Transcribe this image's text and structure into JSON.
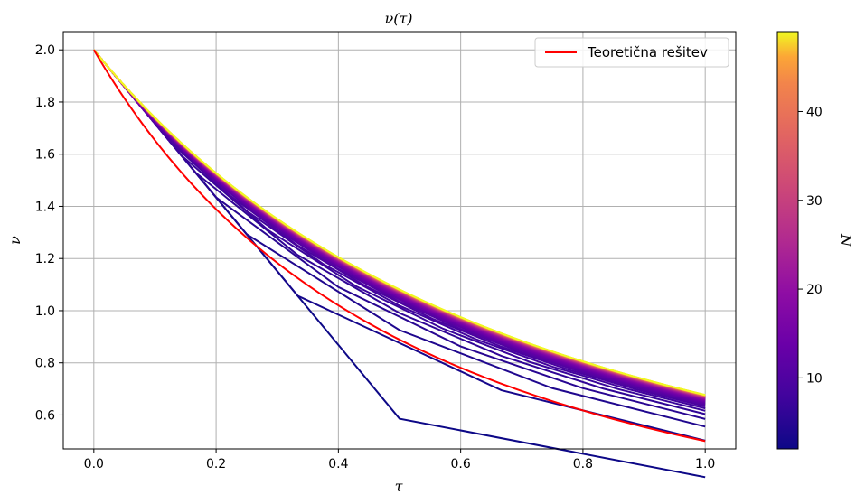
{
  "chart_data": {
    "type": "line",
    "title": "ν(τ)",
    "xlabel": "τ",
    "ylabel": "ν",
    "xlim": [
      -0.05,
      1.05
    ],
    "ylim": [
      0.47,
      2.07
    ],
    "xticks": [
      "0.0",
      "0.2",
      "0.4",
      "0.6",
      "0.8",
      "1.0"
    ],
    "yticks": [
      "0.6",
      "0.8",
      "1.0",
      "1.2",
      "1.4",
      "1.6",
      "1.8",
      "2.0"
    ],
    "grid": true,
    "legend": {
      "placement": "top-right",
      "entries": [
        "Teoretična rešitev"
      ]
    },
    "colormap": "plasma",
    "colorbar": {
      "label": "N",
      "range": [
        2,
        49
      ],
      "ticks": [
        "10",
        "20",
        "30",
        "40"
      ]
    },
    "series_description": "Numerical solutions for N = 2..49 grid points, ν(τ) with N steps from ν(0)=2",
    "N_values": [
      2,
      3,
      4,
      5,
      6,
      7,
      8,
      9,
      10,
      11,
      12,
      13,
      14,
      15,
      16,
      17,
      18,
      19,
      20,
      21,
      22,
      23,
      24,
      25,
      26,
      27,
      28,
      29,
      30,
      31,
      32,
      33,
      34,
      35,
      36,
      37,
      38,
      39,
      40,
      41,
      42,
      43,
      44,
      45,
      46,
      47,
      48,
      49
    ],
    "theoretical": {
      "name": "Teoretična rešitev",
      "color": "#ff0000",
      "formula": "ν = 2/(1+τ)^2"
    }
  }
}
